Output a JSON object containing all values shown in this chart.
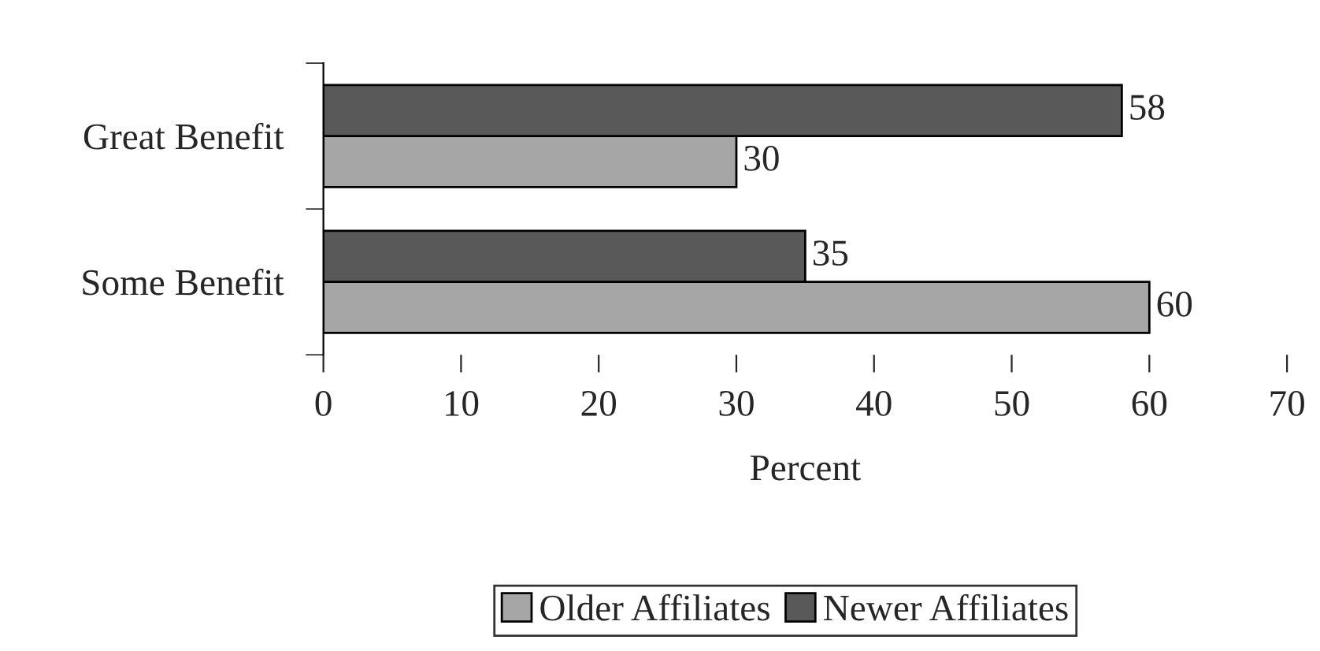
{
  "chart_data": {
    "type": "bar",
    "orientation": "horizontal",
    "categories": [
      "Great Benefit",
      "Some Benefit"
    ],
    "series": [
      {
        "name": "Older Affiliates",
        "color": "#a6a6a6",
        "values": [
          30,
          60
        ]
      },
      {
        "name": "Newer Affiliates",
        "color": "#595959",
        "values": [
          58,
          35
        ]
      }
    ],
    "xlabel": "Percent",
    "xlim": [
      0,
      70
    ],
    "xticks": [
      0,
      10,
      20,
      30,
      40,
      50,
      60,
      70
    ],
    "data_labels": true,
    "grid": false,
    "legend": "bottom"
  }
}
